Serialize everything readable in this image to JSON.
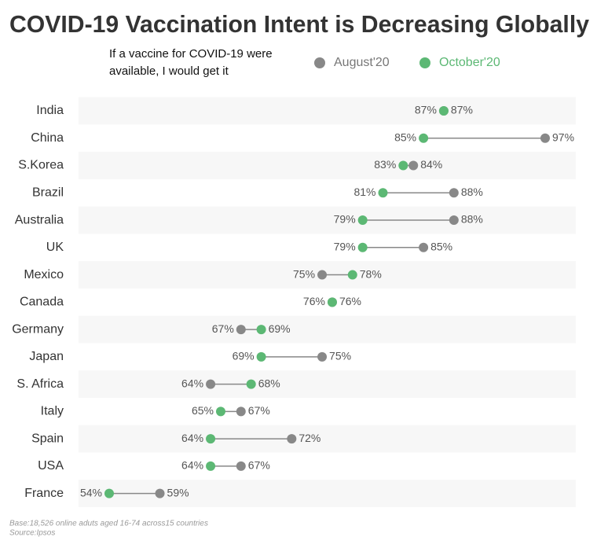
{
  "chart_data": {
    "type": "dumbbell",
    "title": "COVID-19 Vaccination Intent is Decreasing Globally",
    "subtitle": "If a vaccine for COVID-19 were available, I would get it",
    "categories": [
      "India",
      "China",
      "S.Korea",
      "Brazil",
      "Australia",
      "UK",
      "Mexico",
      "Canada",
      "Germany",
      "Japan",
      "S. Africa",
      "Italy",
      "Spain",
      "USA",
      "France"
    ],
    "series": [
      {
        "name": "August'20",
        "color": "#888888",
        "values": [
          87,
          97,
          84,
          88,
          88,
          85,
          75,
          76,
          67,
          75,
          64,
          67,
          72,
          67,
          59
        ],
        "value_labels": [
          "87%",
          "97%",
          "84%",
          "88%",
          "88%",
          "85%",
          "75%",
          "76%",
          "67%",
          "75%",
          "64%",
          "67%",
          "72%",
          "67%",
          "59%"
        ]
      },
      {
        "name": "October'20",
        "color": "#5cb874",
        "values": [
          87,
          85,
          83,
          81,
          79,
          79,
          78,
          76,
          69,
          69,
          68,
          65,
          64,
          64,
          54
        ],
        "value_labels": [
          "87%",
          "85%",
          "83%",
          "81%",
          "79%",
          "79%",
          "78%",
          "76%",
          "69%",
          "69%",
          "68%",
          "65%",
          "64%",
          "64%",
          "54%"
        ]
      }
    ],
    "footnotes": [
      "Base:18,526 online aduts aged 16-74 across15 countries",
      "Source:Ipsos"
    ]
  }
}
